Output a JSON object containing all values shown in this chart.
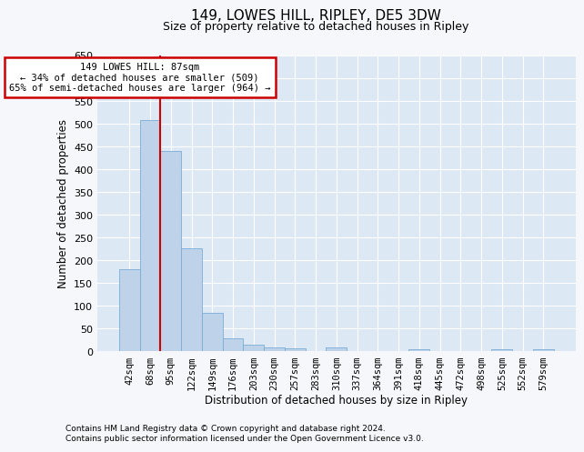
{
  "title": "149, LOWES HILL, RIPLEY, DE5 3DW",
  "subtitle": "Size of property relative to detached houses in Ripley",
  "xlabel": "Distribution of detached houses by size in Ripley",
  "ylabel": "Number of detached properties",
  "footnote1": "Contains HM Land Registry data © Crown copyright and database right 2024.",
  "footnote2": "Contains public sector information licensed under the Open Government Licence v3.0.",
  "annotation_line1": "149 LOWES HILL: 87sqm",
  "annotation_line2": "← 34% of detached houses are smaller (509)",
  "annotation_line3": "65% of semi-detached houses are larger (964) →",
  "categories": [
    "42sqm",
    "68sqm",
    "95sqm",
    "122sqm",
    "149sqm",
    "176sqm",
    "203sqm",
    "230sqm",
    "257sqm",
    "283sqm",
    "310sqm",
    "337sqm",
    "364sqm",
    "391sqm",
    "418sqm",
    "445sqm",
    "472sqm",
    "498sqm",
    "525sqm",
    "552sqm",
    "579sqm"
  ],
  "values": [
    181,
    509,
    441,
    227,
    84,
    28,
    15,
    9,
    6,
    0,
    8,
    0,
    0,
    0,
    5,
    0,
    0,
    0,
    5,
    0,
    5
  ],
  "bar_color": "#bed3ea",
  "bar_edge_color": "#7aadd4",
  "red_line_x": 2,
  "ylim": [
    0,
    650
  ],
  "yticks": [
    0,
    50,
    100,
    150,
    200,
    250,
    300,
    350,
    400,
    450,
    500,
    550,
    600,
    650
  ],
  "background_color": "#f5f7fa",
  "plot_bg_color": "#dde8f5",
  "grid_color": "#ffffff",
  "title_fontsize": 11,
  "subtitle_fontsize": 9,
  "axis_label_fontsize": 8.5,
  "tick_fontsize": 7.5,
  "annotation_box_color": "#ffffff",
  "annotation_border_color": "#cc0000",
  "red_line_color": "#cc0000",
  "footnote_fontsize": 6.5
}
